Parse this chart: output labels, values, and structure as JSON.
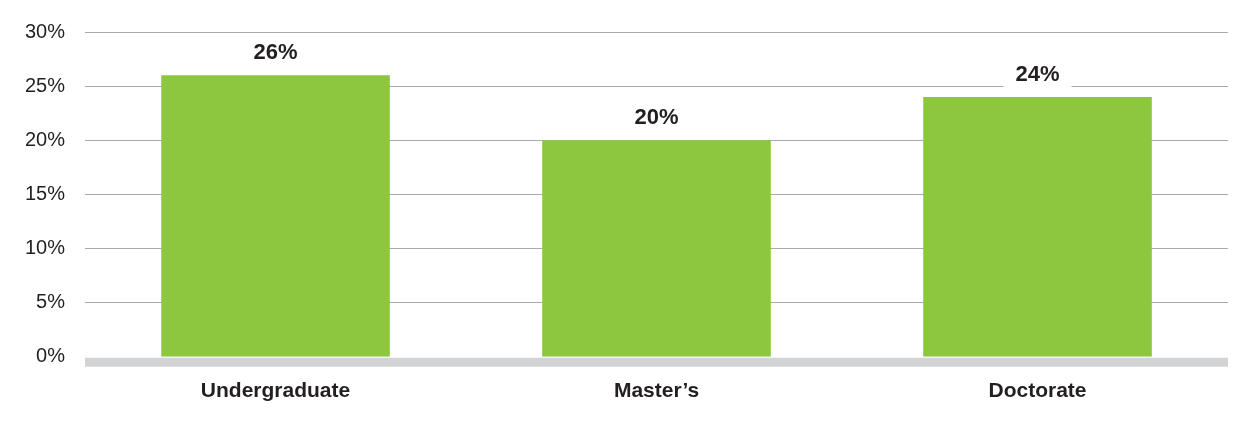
{
  "chart_data": {
    "type": "bar",
    "categories": [
      "Undergraduate",
      "Master’s",
      "Doctorate"
    ],
    "values": [
      26,
      20,
      24
    ],
    "color": "#8dc63f",
    "value_labels": [
      "26%",
      "20%",
      "24%"
    ],
    "ylim": [
      0,
      30
    ],
    "yticks": [
      {
        "value": 0,
        "label": "0%"
      },
      {
        "value": 5,
        "label": "5%"
      },
      {
        "value": 10,
        "label": "10%"
      },
      {
        "value": 15,
        "label": "15%"
      },
      {
        "value": 20,
        "label": "20%"
      },
      {
        "value": 25,
        "label": "25%"
      },
      {
        "value": 30,
        "label": "30%"
      }
    ],
    "grid": "y",
    "legend": false
  }
}
